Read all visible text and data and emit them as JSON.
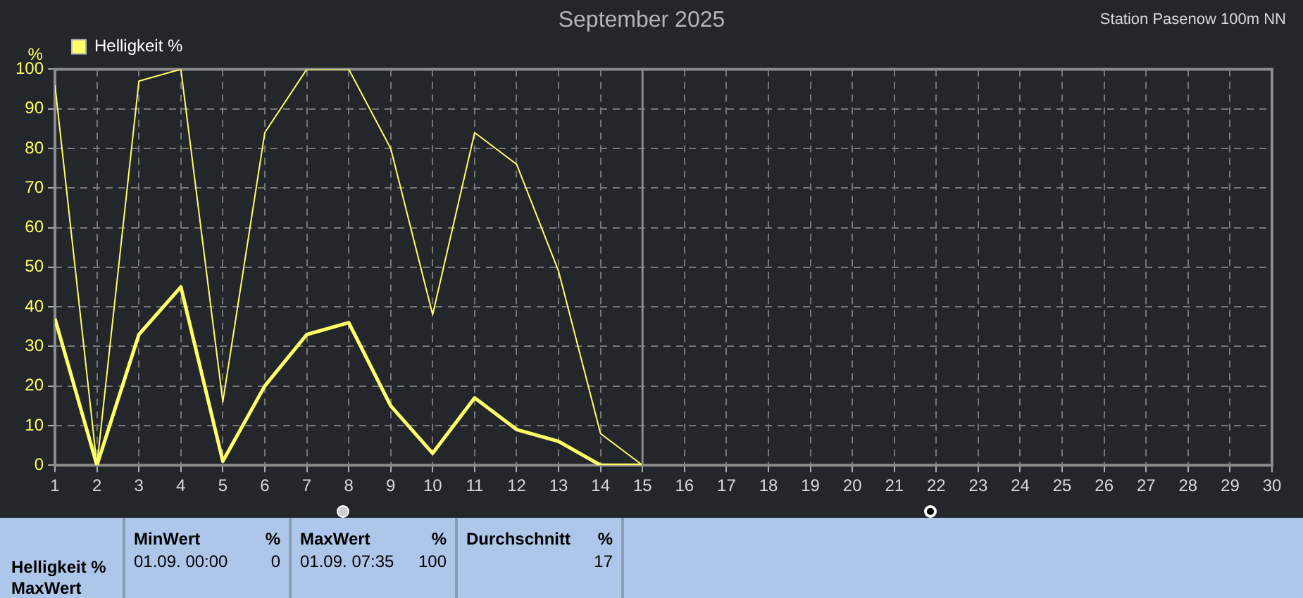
{
  "chart_data": {
    "type": "line",
    "title": "September 2025",
    "ylabel": "%",
    "x": [
      1,
      2,
      3,
      4,
      5,
      6,
      7,
      8,
      9,
      10,
      11,
      12,
      13,
      14,
      15
    ],
    "series": [
      {
        "name": "Helligkeit %",
        "color": "#ffff66",
        "values": [
          96,
          0,
          97,
          100,
          16,
          84,
          100,
          100,
          80,
          38,
          84,
          76,
          49,
          8,
          0
        ]
      },
      {
        "color": "#ffff66",
        "values": [
          37,
          0,
          33,
          45,
          1,
          20,
          33,
          36,
          15,
          3,
          17,
          9,
          6,
          0,
          0
        ]
      }
    ],
    "xlim": [
      1,
      30
    ],
    "xticks": [
      1,
      2,
      3,
      4,
      5,
      6,
      7,
      8,
      9,
      10,
      11,
      12,
      13,
      14,
      15,
      16,
      17,
      18,
      19,
      20,
      21,
      22,
      23,
      24,
      25,
      26,
      27,
      28,
      29,
      30
    ],
    "ylim": [
      0,
      100
    ],
    "yticks": [
      0,
      10,
      20,
      30,
      40,
      50,
      60,
      70,
      80,
      90,
      100
    ],
    "grid": true,
    "legend": "top left",
    "marker": "none",
    "line_style": "solid",
    "ref_lines": [
      {
        "axis": "x",
        "value": 15,
        "color": "#8c8c8c"
      }
    ],
    "annotations": [
      "Station Pasenow 100m NN",
      "Helligkeit %",
      "MaxWert",
      "MinWert",
      "%",
      "01.09.  00:00",
      "0",
      "MaxWert",
      "%",
      "01.09.  07:35",
      "100",
      "Durchschnitt",
      "%",
      "17"
    ]
  }
}
